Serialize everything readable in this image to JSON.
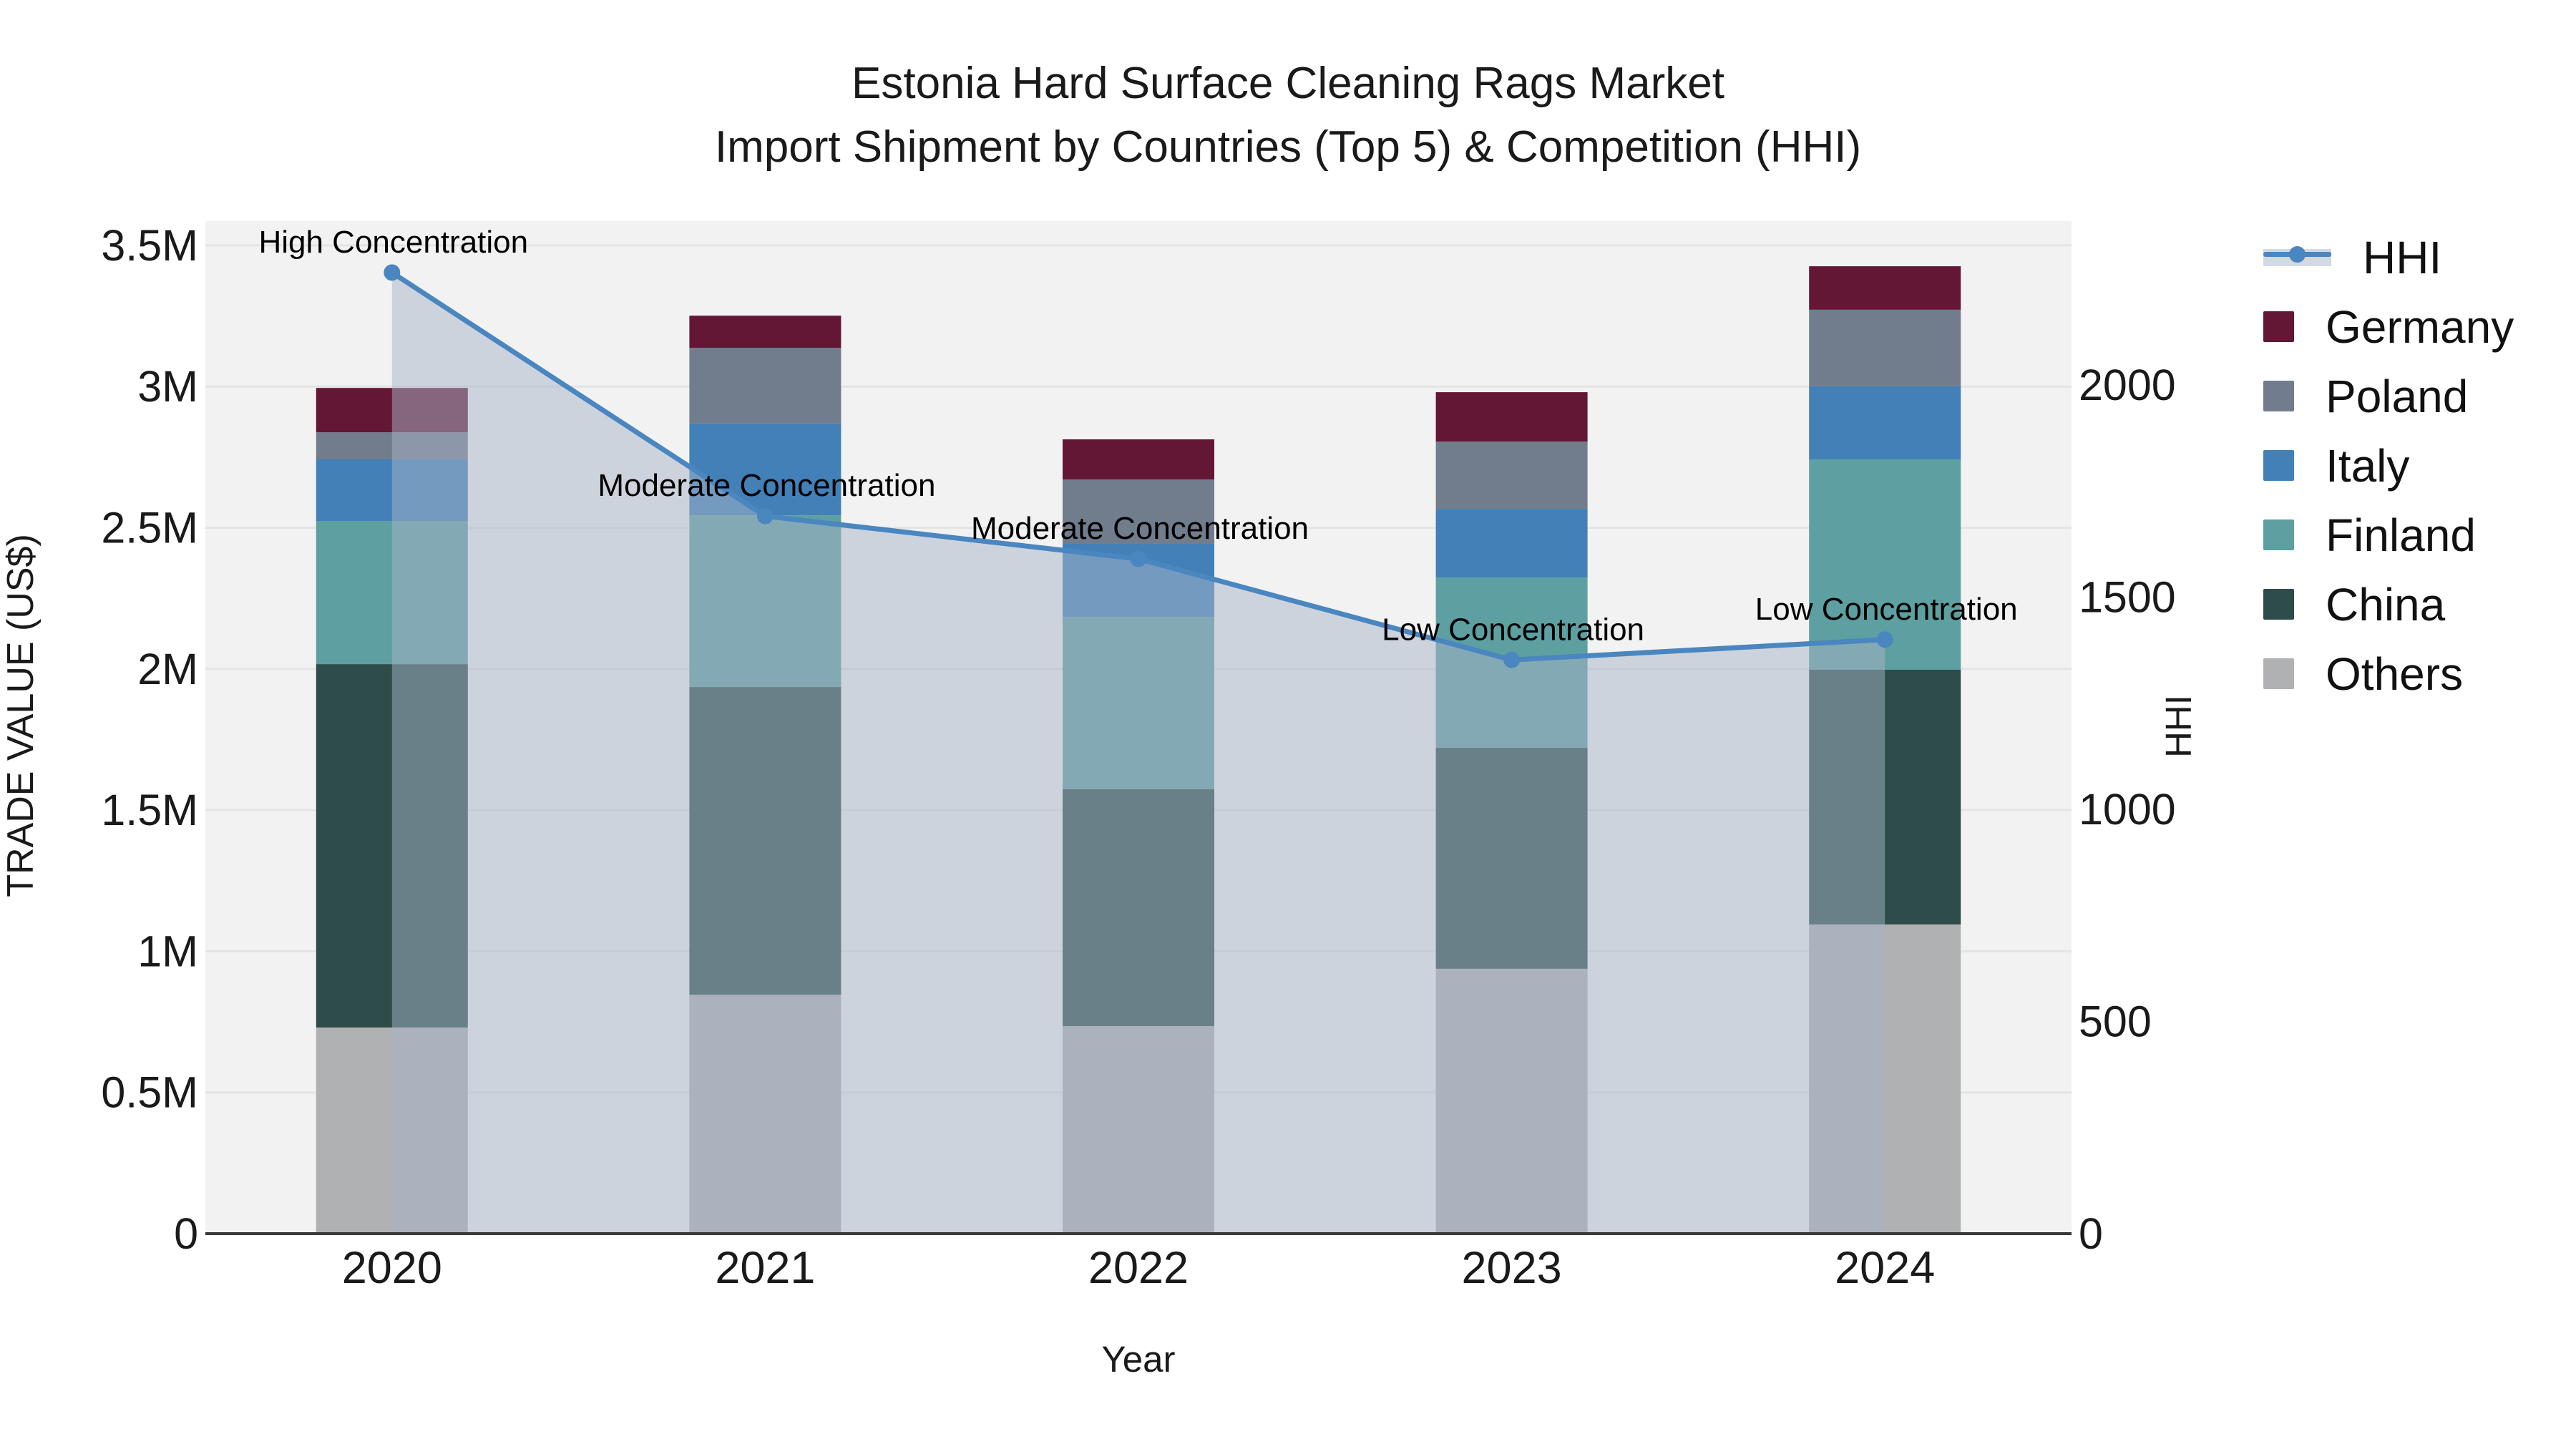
{
  "title": {
    "line1": "Estonia Hard Surface Cleaning Rags Market",
    "line2": "Import Shipment by Countries (Top 5) & Competition (HHI)"
  },
  "legend": {
    "hhi_label": "HHI"
  },
  "colors": {
    "plot_bg": "#f2f2f2",
    "grid": "#e4e4e4",
    "axis_spine": "#3a3a3a",
    "text": "#1a1a1a",
    "annotation_text": "#000000",
    "hhi_line": "#4a86bf",
    "hhi_area_fill": "rgba(168,180,200,0.5)"
  },
  "chart_data": {
    "type": "stacked_bar_with_line",
    "title": "Estonia Hard Surface Cleaning Rags Market\nImport Shipment by Countries (Top 5) & Competition (HHI)",
    "xlabel": "Year",
    "ylabel_left": "TRADE VALUE (US$)",
    "ylabel_right": "HHI",
    "categories": [
      "2020",
      "2021",
      "2022",
      "2023",
      "2024"
    ],
    "unit_left": "M US$",
    "stacked": true,
    "grid": "horizontal gridlines every 0.5M",
    "legend_position": "right",
    "series": [
      {
        "name": "Germany",
        "color": "#641735",
        "values": [
          0.157,
          0.114,
          0.142,
          0.175,
          0.154
        ]
      },
      {
        "name": "Poland",
        "color": "#717d8c",
        "values": [
          0.096,
          0.268,
          0.228,
          0.238,
          0.271
        ]
      },
      {
        "name": "Italy",
        "color": "#4280b7",
        "values": [
          0.218,
          0.325,
          0.259,
          0.243,
          0.259
        ]
      },
      {
        "name": "Finland",
        "color": "#5ea0a1",
        "values": [
          0.507,
          0.608,
          0.61,
          0.603,
          0.745
        ]
      },
      {
        "name": "China",
        "color": "#2d4c4a",
        "values": [
          1.287,
          1.09,
          0.839,
          0.783,
          0.902
        ]
      },
      {
        "name": "Others",
        "color": "#b0b1b3",
        "values": [
          0.73,
          0.846,
          0.735,
          0.938,
          1.095
        ]
      }
    ],
    "bar_totals": [
      2.995,
      3.251,
      2.813,
      2.98,
      3.426
    ],
    "line": {
      "name": "HHI",
      "axis": "right",
      "values": [
        2265,
        1691,
        1590,
        1352,
        1400
      ]
    },
    "annotations": [
      "High Concentration",
      "Moderate Concentration",
      "Moderate Concentration",
      "Low Concentration",
      "Low Concentration"
    ],
    "yaxis_left": {
      "tick_values": [
        0,
        0.5,
        1,
        1.5,
        2,
        2.5,
        3,
        3.5
      ],
      "tick_labels": [
        "0",
        "0.5M",
        "1M",
        "1.5M",
        "2M",
        "2.5M",
        "3M",
        "3.5M"
      ],
      "ylim": [
        0,
        3.5
      ]
    },
    "yaxis_right": {
      "tick_values": [
        0,
        500,
        1000,
        1500,
        2000
      ],
      "tick_labels": [
        "0",
        "500",
        "1000",
        "1500",
        "2000"
      ],
      "ylim": [
        0,
        2385
      ]
    }
  }
}
